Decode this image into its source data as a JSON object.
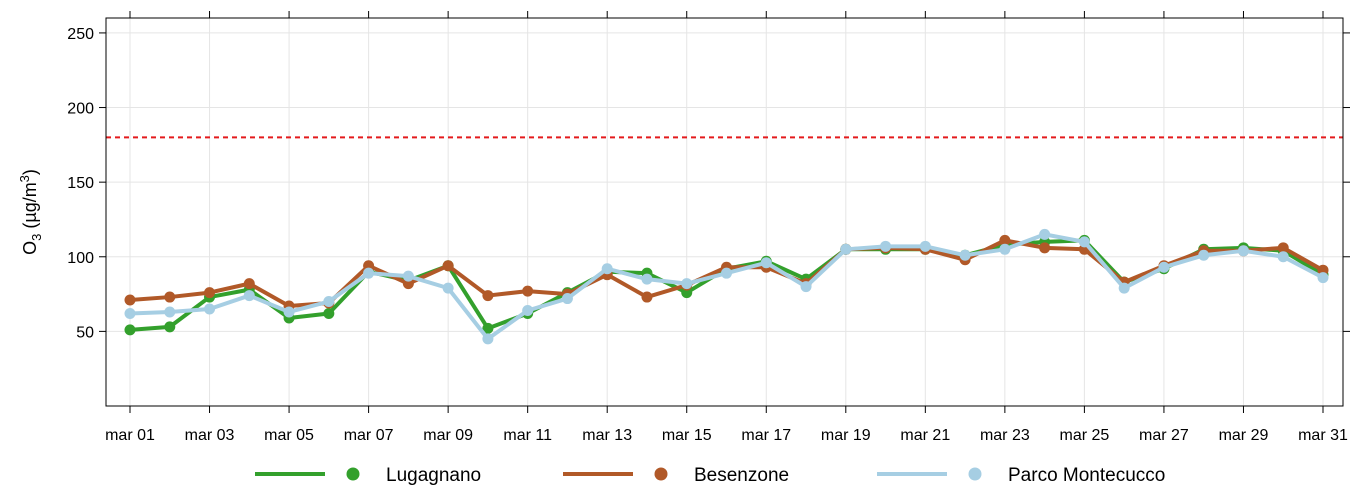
{
  "chart_data": {
    "type": "line",
    "ylabel": "O3 (µg/m3)",
    "ylabel_parts": {
      "main": "O",
      "sub": "3",
      "unit_open": " (µg/m",
      "sup": "3",
      "unit_close": ")"
    },
    "ylim": [
      0,
      260
    ],
    "y_ticks": [
      50,
      100,
      150,
      200,
      250
    ],
    "x": [
      "mar 01",
      "mar 02",
      "mar 03",
      "mar 04",
      "mar 05",
      "mar 06",
      "mar 07",
      "mar 08",
      "mar 09",
      "mar 10",
      "mar 11",
      "mar 12",
      "mar 13",
      "mar 14",
      "mar 15",
      "mar 16",
      "mar 17",
      "mar 18",
      "mar 19",
      "mar 20",
      "mar 21",
      "mar 22",
      "mar 23",
      "mar 24",
      "mar 25",
      "mar 26",
      "mar 27",
      "mar 28",
      "mar 29",
      "mar 30",
      "mar 31"
    ],
    "x_tick_labels": [
      "mar 01",
      "mar 03",
      "mar 05",
      "mar 07",
      "mar 09",
      "mar 11",
      "mar 13",
      "mar 15",
      "mar 17",
      "mar 19",
      "mar 21",
      "mar 23",
      "mar 25",
      "mar 27",
      "mar 29",
      "mar 31"
    ],
    "threshold": {
      "value": 180,
      "color": "#e41a1c",
      "style": "dashed"
    },
    "grid": true,
    "legend_position": "bottom",
    "series": [
      {
        "name": "Lugagnano",
        "color": "#33a02c",
        "values": [
          51,
          53,
          73,
          78,
          59,
          62,
          90,
          84,
          94,
          52,
          62,
          76,
          90,
          89,
          76,
          92,
          97,
          85,
          105,
          105,
          105,
          101,
          108,
          110,
          111,
          83,
          92,
          105,
          106,
          104,
          88
        ]
      },
      {
        "name": "Besenzone",
        "color": "#b15928",
        "values": [
          71,
          73,
          76,
          82,
          67,
          69,
          94,
          82,
          94,
          74,
          77,
          75,
          88,
          73,
          81,
          93,
          93,
          82,
          105,
          106,
          105,
          98,
          111,
          106,
          105,
          83,
          94,
          104,
          104,
          106,
          91
        ]
      },
      {
        "name": "Parco Montecucco",
        "color": "#a6cee3",
        "values": [
          62,
          63,
          65,
          74,
          63,
          70,
          89,
          87,
          79,
          45,
          64,
          72,
          92,
          85,
          82,
          89,
          96,
          80,
          105,
          107,
          107,
          101,
          105,
          115,
          110,
          79,
          93,
          101,
          104,
          100,
          86
        ]
      }
    ]
  }
}
